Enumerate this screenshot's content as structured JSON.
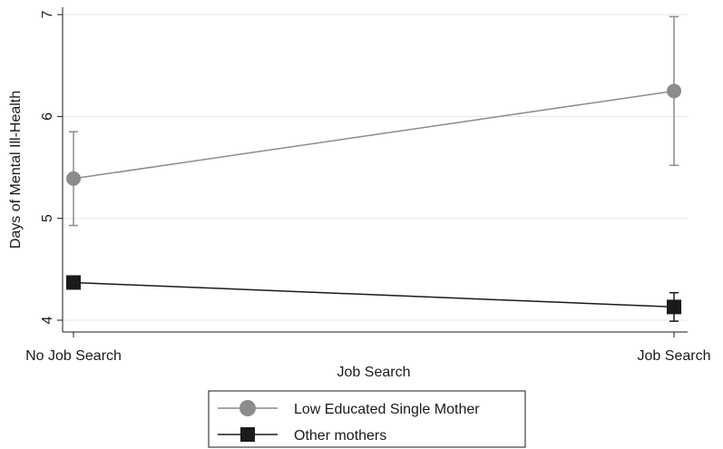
{
  "chart_data": {
    "type": "line",
    "title": "",
    "xlabel": "Job Search",
    "ylabel": "Days of Mental Ill-Health",
    "categories": [
      "No Job Search",
      "Job Search"
    ],
    "ylim": [
      4,
      7
    ],
    "yticks": [
      4,
      5,
      6,
      7
    ],
    "grid": true,
    "legend_position": "bottom",
    "series": [
      {
        "name": "Low Educated Single Mother",
        "color": "#8c8c8c",
        "marker": "circle",
        "values": [
          5.39,
          6.25
        ],
        "ci_low": [
          4.93,
          5.52
        ],
        "ci_high": [
          5.85,
          6.98
        ]
      },
      {
        "name": "Other mothers",
        "color": "#1a1a1a",
        "marker": "square",
        "values": [
          4.37,
          4.13
        ],
        "ci_low": [
          4.32,
          3.99
        ],
        "ci_high": [
          4.42,
          4.27
        ]
      }
    ]
  }
}
